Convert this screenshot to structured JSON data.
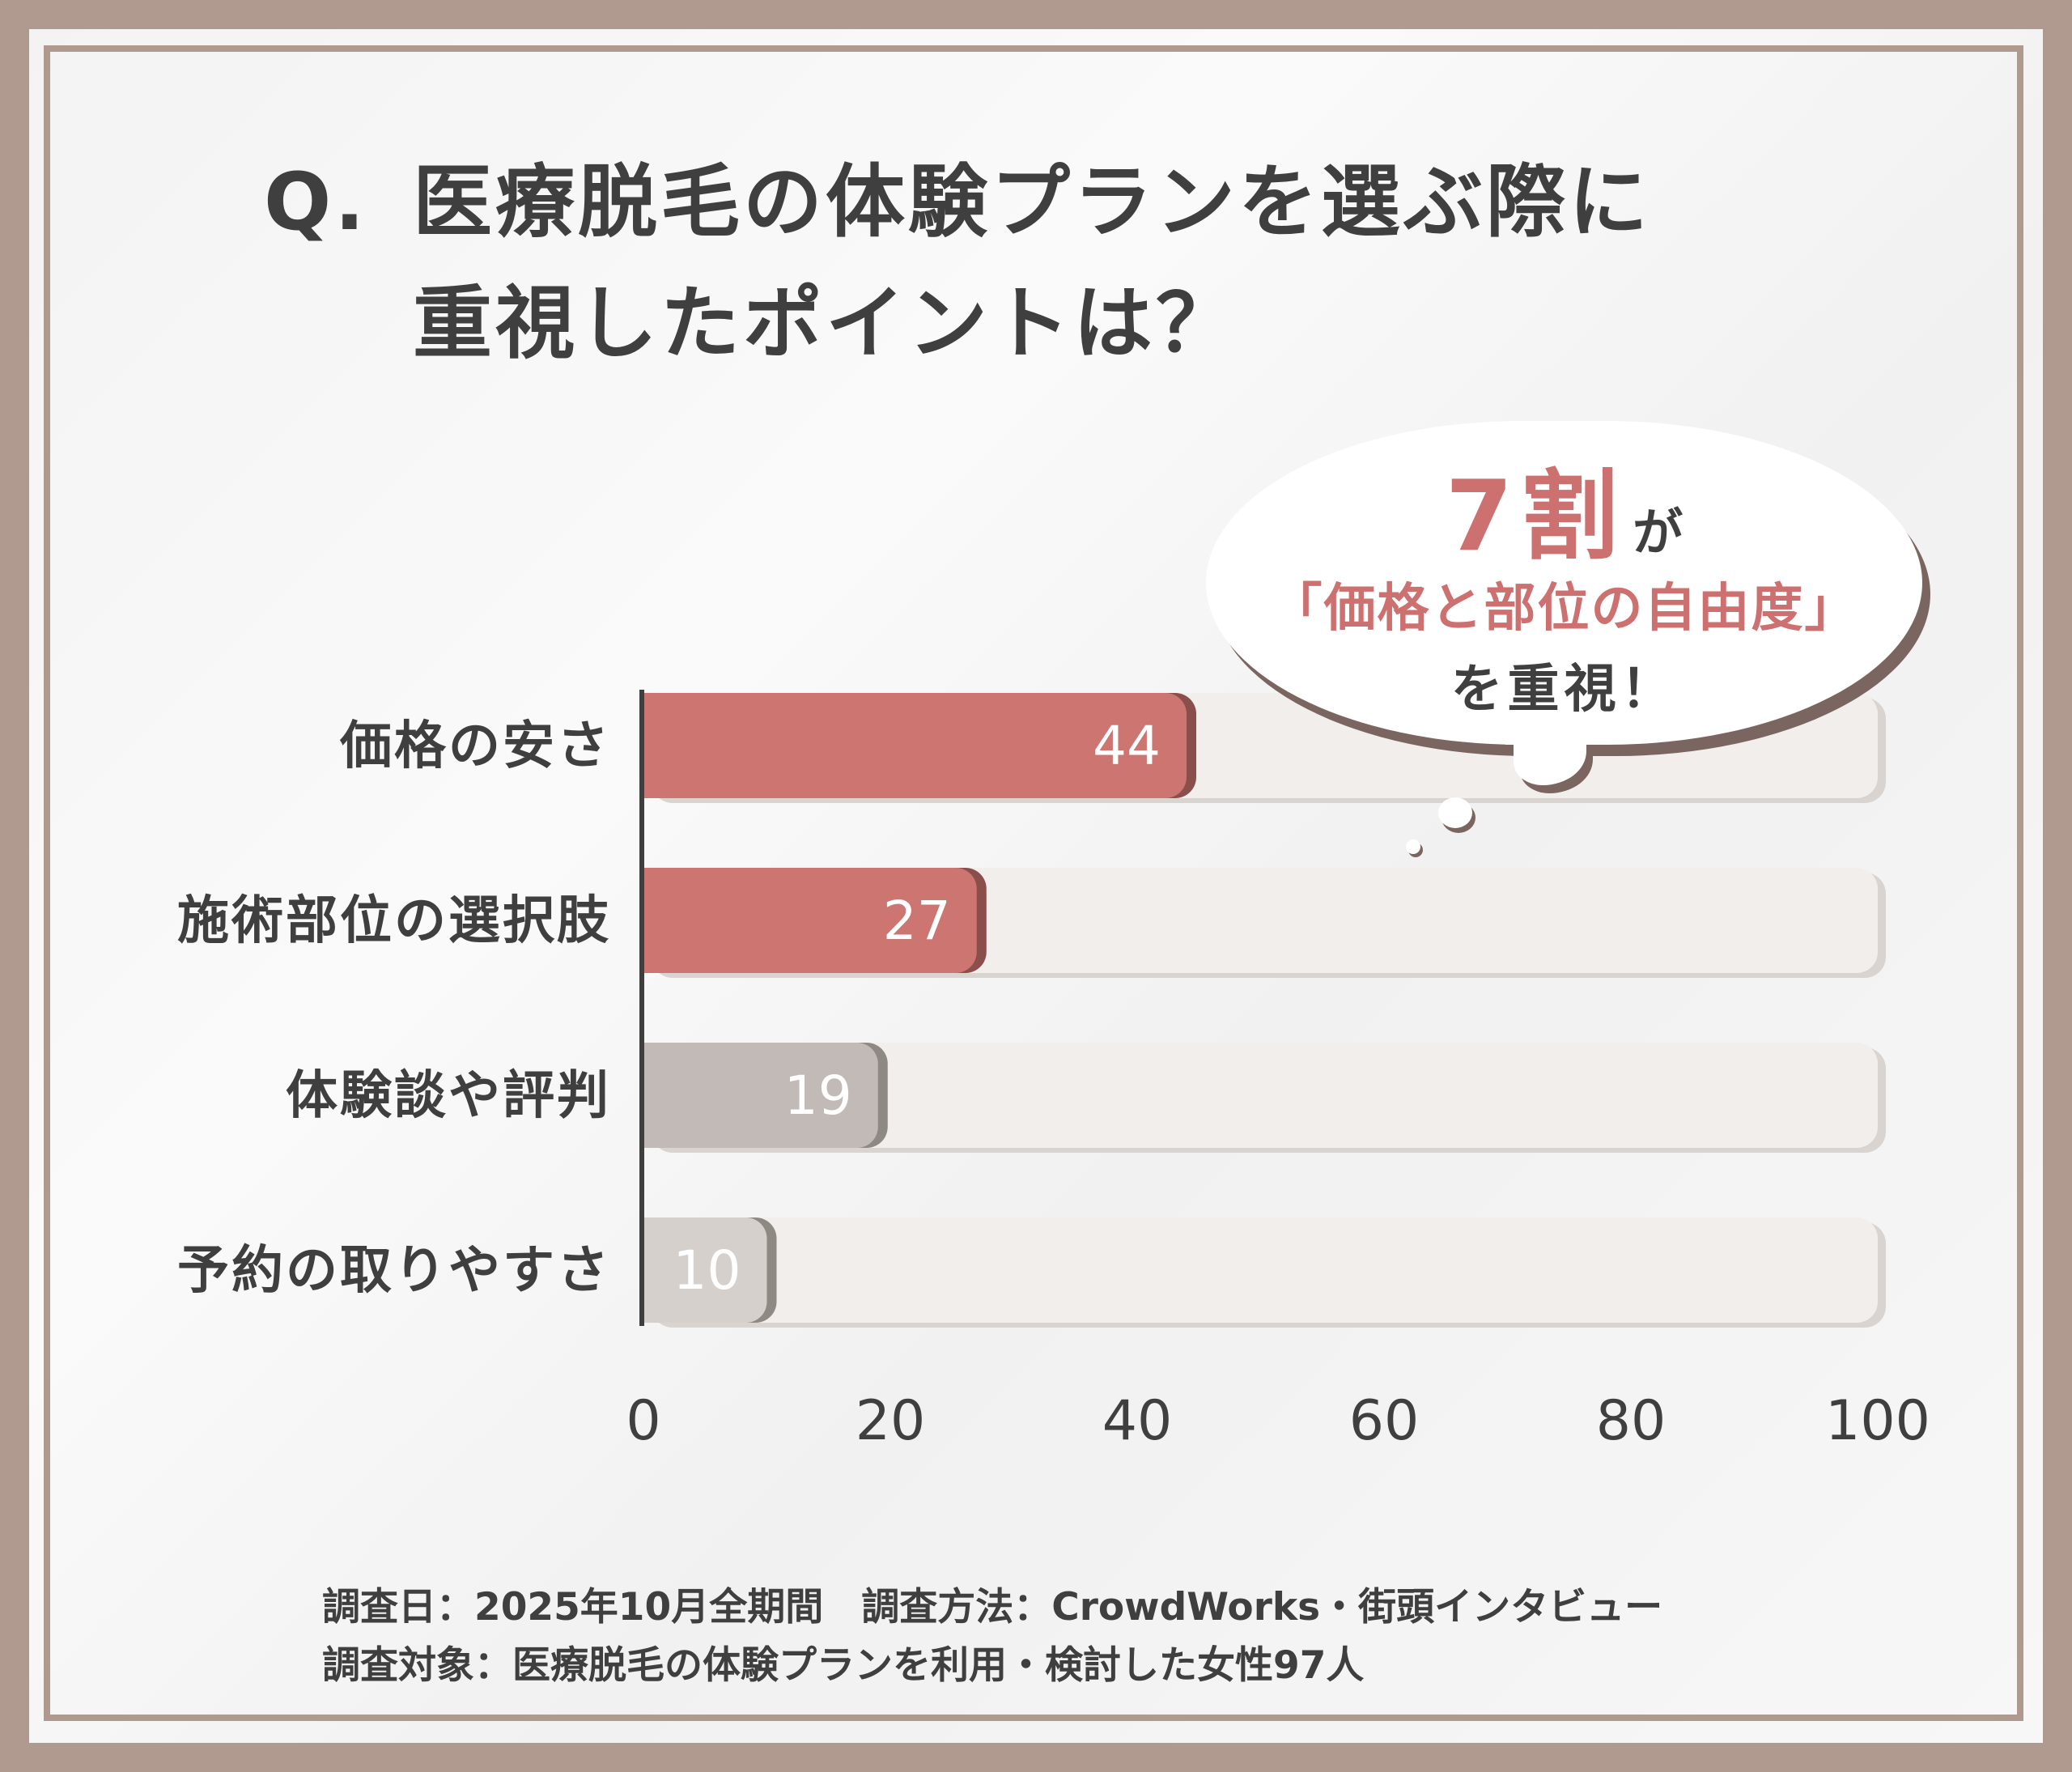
{
  "title": {
    "q": "Q.",
    "line1": "医療脱毛の体験プランを選ぶ際に",
    "line2": "重視したポイントは？"
  },
  "callout": {
    "big": "7割",
    "ga": "が",
    "line2": "「価格と部位の自由度」",
    "line3": "を重視！"
  },
  "chart_data": {
    "type": "bar",
    "orientation": "horizontal",
    "categories": [
      "価格の安さ",
      "施術部位の選択肢",
      "体験談や評判",
      "予約の取りやすさ"
    ],
    "values": [
      44,
      27,
      19,
      10
    ],
    "xlim": [
      0,
      100
    ],
    "xticks": [
      0,
      20,
      40,
      60,
      80,
      100
    ],
    "colors": [
      "#cc7571",
      "#cc7571",
      "#c2bab6",
      "#d6d0cc"
    ],
    "track_color": "#f1eeeb"
  },
  "footer": {
    "line1": "調査日：2025年10月全期間　調査方法：CrowdWorks・街頭インタビュー",
    "line2": "調査対象：医療脱毛の体験プランを利用・検討した女性97人"
  }
}
